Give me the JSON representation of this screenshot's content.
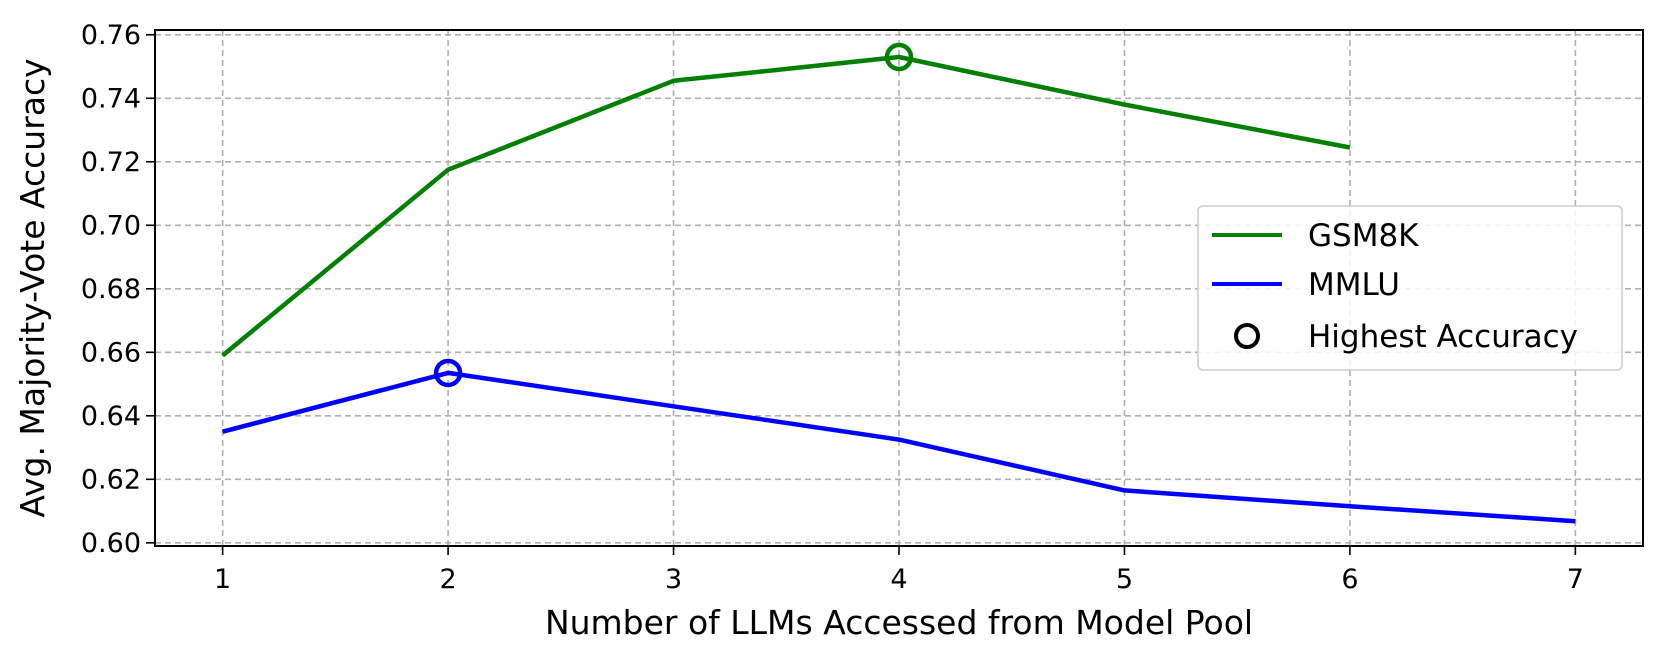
{
  "chart_data": {
    "type": "line",
    "title": "",
    "xlabel": "Number of LLMs Accessed from Model Pool",
    "ylabel": "Avg. Majority-Vote Accuracy",
    "x_ticks": [
      1,
      2,
      3,
      4,
      5,
      6,
      7
    ],
    "y_ticks": [
      "0.60",
      "0.62",
      "0.64",
      "0.66",
      "0.68",
      "0.70",
      "0.72",
      "0.74",
      "0.76"
    ],
    "xlim": [
      0.7,
      7.3
    ],
    "ylim": [
      0.599,
      0.7615
    ],
    "grid": true,
    "legend_position": "center-right",
    "series": [
      {
        "name": "GSM8K",
        "color": "#008000",
        "x": [
          1,
          2,
          3,
          4,
          5,
          6
        ],
        "y": [
          0.659,
          0.7175,
          0.7455,
          0.753,
          0.738,
          0.7245
        ],
        "highlight": {
          "x": 4,
          "y": 0.753
        }
      },
      {
        "name": "MMLU",
        "color": "#0000ff",
        "x": [
          1,
          2,
          3,
          4,
          5,
          6,
          7
        ],
        "y": [
          0.635,
          0.6535,
          0.643,
          0.6325,
          0.6165,
          0.6115,
          0.6068
        ],
        "highlight": {
          "x": 2,
          "y": 0.6535
        }
      }
    ],
    "legend": {
      "entries": [
        {
          "label": "GSM8K",
          "symbol": "line",
          "color": "#008000"
        },
        {
          "label": "MMLU",
          "symbol": "line",
          "color": "#0000ff"
        },
        {
          "label": "Highest Accuracy",
          "symbol": "circle",
          "color": "#000000"
        }
      ]
    }
  }
}
